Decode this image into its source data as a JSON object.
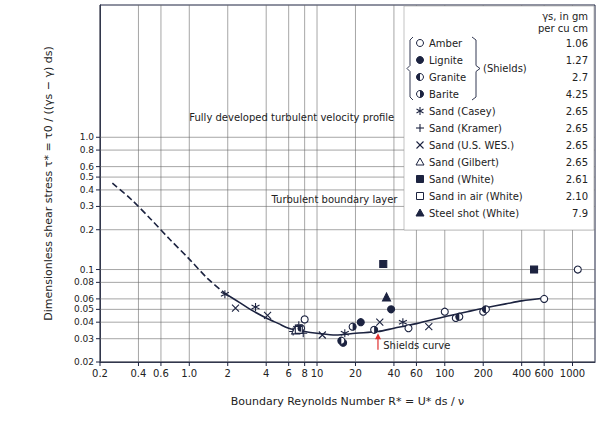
{
  "chart_data": {
    "type": "scatter",
    "xlabel": "Boundary Reynolds Number R* = U* ds / ν",
    "ylabel": "Dimensionless shear stress τ* = τ0 / ((γs − γ) ds)",
    "log": true,
    "grid": true,
    "color": "#1c2340",
    "xlim": [
      0.2,
      1500
    ],
    "xticks": [
      0.2,
      0.4,
      0.6,
      {
        "value": 1,
        "label": "1.0"
      },
      2,
      4,
      6,
      8,
      10,
      20,
      40,
      60,
      100,
      200,
      400,
      600,
      1000
    ],
    "ylim": [
      0.02,
      10
    ],
    "yticks": [
      0.02,
      0.03,
      0.04,
      0.05,
      0.06,
      0.08,
      0.1,
      0.2,
      0.3,
      0.4,
      0.5,
      0.6,
      0.8,
      {
        "value": 1,
        "label": "1.0"
      }
    ],
    "legend": "upper right",
    "legend_title": "γs, in gm\nper cu cm",
    "legend_group": {
      "label": "(Shields)",
      "members": [
        "Amber",
        "Lignite",
        "Granite",
        "Barite"
      ]
    },
    "series": [
      {
        "name": "Amber",
        "density": 1.06,
        "marker": "circle_open",
        "x": [
          8,
          52,
          100,
          122,
          200,
          600,
          1100
        ],
        "values": [
          0.042,
          0.036,
          0.048,
          0.043,
          0.048,
          0.06,
          0.1
        ]
      },
      {
        "name": "Lignite",
        "density": 1.27,
        "marker": "circle",
        "x": [
          16,
          22,
          38
        ],
        "values": [
          0.028,
          0.04,
          0.05
        ]
      },
      {
        "name": "Granite",
        "density": 2.7,
        "marker": "circle_half_left",
        "x": [
          7.5,
          15.5,
          130,
          210
        ],
        "values": [
          0.036,
          0.029,
          0.044,
          0.05
        ]
      },
      {
        "name": "Barite",
        "density": 4.25,
        "marker": "circle_half_right",
        "x": [
          19,
          28
        ],
        "values": [
          0.037,
          0.035
        ]
      },
      {
        "name": "Sand (Casey)",
        "density": 2.65,
        "marker": "asterisk",
        "x": [
          1.9,
          3.3,
          7,
          16.5,
          47
        ],
        "values": [
          0.065,
          0.052,
          0.036,
          0.033,
          0.04
        ]
      },
      {
        "name": "Sand (Kramer)",
        "density": 2.65,
        "marker": "plus",
        "x": [
          6.5,
          7.2,
          7.8
        ],
        "values": [
          0.034,
          0.038,
          0.033
        ]
      },
      {
        "name": "Sand (U.S. WES.)",
        "density": 2.65,
        "marker": "x",
        "x": [
          2.3,
          4.1,
          11,
          31,
          75
        ],
        "values": [
          0.051,
          0.045,
          0.032,
          0.04,
          0.037
        ]
      },
      {
        "name": "Sand (Gilbert)",
        "density": 2.65,
        "marker": "triangle_open",
        "x": [
          6.8
        ],
        "values": [
          0.035
        ]
      },
      {
        "name": "Sand (White)",
        "density": 2.61,
        "marker": "square",
        "x": [
          33,
          500
        ],
        "values": [
          0.11,
          0.1
        ]
      },
      {
        "name": "Sand in air (White)",
        "density": {
          "value": 2.1,
          "label": "2.10"
        },
        "marker": "square_open",
        "x": [
          7.2
        ],
        "values": [
          0.035
        ]
      },
      {
        "name": "Steel shot (White)",
        "density": 7.9,
        "marker": "triangle",
        "x": [
          35
        ],
        "values": [
          0.062
        ]
      }
    ],
    "curves": [
      {
        "line_style": "dashed",
        "x": [
          0.25,
          0.35,
          0.5,
          0.7,
          1,
          1.4,
          1.9
        ],
        "values": [
          0.45,
          0.34,
          0.24,
          0.17,
          0.12,
          0.085,
          0.066
        ]
      },
      {
        "line_style": "solid",
        "x": [
          1.9,
          2.5,
          3,
          4,
          5,
          6,
          8,
          10,
          14,
          20,
          30,
          40,
          60,
          100,
          150,
          200,
          300,
          400,
          600
        ],
        "values": [
          0.066,
          0.056,
          0.05,
          0.043,
          0.039,
          0.036,
          0.034,
          0.033,
          0.032,
          0.033,
          0.034,
          0.036,
          0.039,
          0.044,
          0.048,
          0.051,
          0.055,
          0.058,
          0.061
        ]
      }
    ],
    "annotations": [
      {
        "text": "Fully developed turbulent velocity profile",
        "x": 1.0,
        "y": 1.4
      },
      {
        "text": "Turbulent boundary layer",
        "x": 4.4,
        "y": 0.34
      },
      {
        "text": "Shields curve",
        "x": 33,
        "y": 0.0265,
        "arrow_to": [
          30,
          0.033
        ]
      }
    ]
  }
}
